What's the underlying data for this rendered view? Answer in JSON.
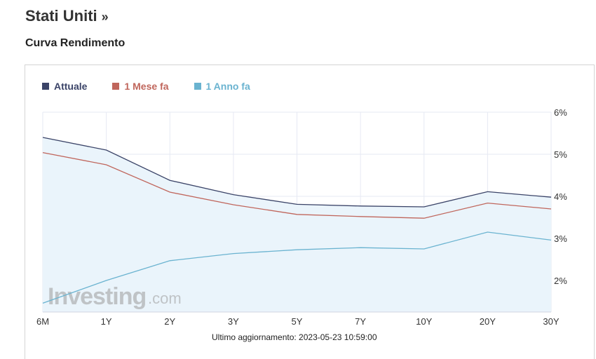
{
  "header": {
    "country": "Stati Uniti",
    "more_glyph": "»",
    "section": "Curva Rendimento"
  },
  "footer": {
    "updated_label": "Ultimo aggiornamento: 2023-05-23 10:59:00"
  },
  "watermark": {
    "text_main": "Investing",
    "text_suffix": ".com"
  },
  "chart_data": {
    "type": "area",
    "categories": [
      "6M",
      "1Y",
      "2Y",
      "3Y",
      "5Y",
      "7Y",
      "10Y",
      "20Y",
      "30Y"
    ],
    "series": [
      {
        "name": "Attuale",
        "color": "#3b4468",
        "values": [
          5.4,
          5.1,
          4.38,
          4.04,
          3.81,
          3.77,
          3.75,
          4.11,
          3.98
        ]
      },
      {
        "name": "1 Mese fa",
        "color": "#c0665c",
        "values": [
          5.04,
          4.75,
          4.1,
          3.8,
          3.57,
          3.52,
          3.48,
          3.84,
          3.7
        ]
      },
      {
        "name": "1 Anno fa",
        "color": "#6ab3d0",
        "values": [
          1.46,
          2.0,
          2.47,
          2.64,
          2.73,
          2.78,
          2.75,
          3.15,
          2.96
        ]
      }
    ],
    "ylim": [
      1.25,
      6
    ],
    "yticks": [
      2,
      3,
      4,
      5,
      6
    ],
    "ytick_labels": [
      "2%",
      "3%",
      "4%",
      "5%",
      "6%"
    ],
    "yaxis_side": "right",
    "grid": true,
    "legend": "top-left",
    "fill_color": "#eaf4fb"
  }
}
